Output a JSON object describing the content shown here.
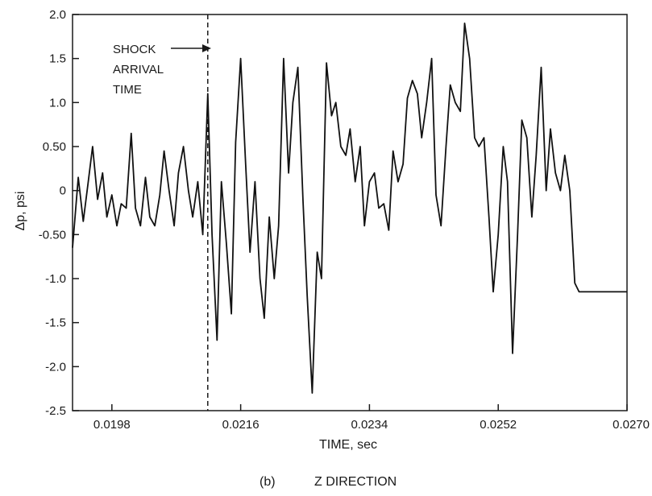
{
  "chart_data": {
    "type": "line",
    "caption_letter": "(b)",
    "caption_text": "Z DIRECTION",
    "xlabel": "TIME, sec",
    "ylabel": "Δp, psi",
    "xlim": [
      0.01925,
      0.027
    ],
    "ylim": [
      -2.5,
      2.0
    ],
    "x_ticks": [
      0.0198,
      0.0216,
      0.0234,
      0.0252,
      0.027
    ],
    "x_tick_labels": [
      "0.0198",
      "0.0216",
      "0.0234",
      "0.0252",
      "0.0270"
    ],
    "y_ticks": [
      2.0,
      1.5,
      1.0,
      0.5,
      0,
      -0.5,
      -1.0,
      -1.5,
      -2.0,
      -2.5
    ],
    "y_tick_labels": [
      "2.0",
      "1.5",
      "1.0",
      "0.50",
      "0",
      "-0.50",
      "-1.0",
      "-1.5",
      "-2.0",
      "-2.5"
    ],
    "grid": false,
    "annotation": {
      "lines": [
        "SHOCK",
        "ARRIVAL",
        "TIME"
      ],
      "shock_time": 0.02114
    },
    "series": [
      {
        "x": [
          0.01925,
          0.01933,
          0.0194,
          0.01947,
          0.01953,
          0.0196,
          0.01967,
          0.01973,
          0.0198,
          0.01987,
          0.01993,
          0.02,
          0.02007,
          0.02013,
          0.0202,
          0.02027,
          0.02033,
          0.0204,
          0.02047,
          0.02053,
          0.0206,
          0.02067,
          0.02073,
          0.0208,
          0.02087,
          0.02093,
          0.021,
          0.02107,
          0.02114,
          0.0212,
          0.02127,
          0.02133,
          0.0214,
          0.02147,
          0.02153,
          0.0216,
          0.02167,
          0.02173,
          0.0218,
          0.02187,
          0.02193,
          0.022,
          0.02207,
          0.02213,
          0.0222,
          0.02227,
          0.02233,
          0.0224,
          0.02247,
          0.02253,
          0.0226,
          0.02267,
          0.02273,
          0.0228,
          0.02287,
          0.02293,
          0.023,
          0.02307,
          0.02313,
          0.0232,
          0.02327,
          0.02333,
          0.0234,
          0.02347,
          0.02353,
          0.0236,
          0.02367,
          0.02373,
          0.0238,
          0.02387,
          0.02393,
          0.024,
          0.02407,
          0.02413,
          0.0242,
          0.02427,
          0.02433,
          0.0244,
          0.02447,
          0.02453,
          0.0246,
          0.02467,
          0.02473,
          0.0248,
          0.02487,
          0.02493,
          0.025,
          0.02507,
          0.02513,
          0.0252,
          0.02527,
          0.02533,
          0.0254,
          0.02547,
          0.02553,
          0.0256,
          0.02567,
          0.02573,
          0.0258,
          0.02587,
          0.02593,
          0.026,
          0.02607,
          0.02613,
          0.0262,
          0.02627,
          0.02633,
          0.0264,
          0.02647,
          0.02653,
          0.0266,
          0.02667,
          0.02673,
          0.0268,
          0.02687,
          0.02693,
          0.027
        ],
        "y": [
          -0.65,
          0.15,
          -0.35,
          0.1,
          0.5,
          -0.1,
          0.2,
          -0.3,
          -0.05,
          -0.4,
          -0.15,
          -0.2,
          0.65,
          -0.2,
          -0.4,
          0.15,
          -0.3,
          -0.4,
          -0.05,
          0.45,
          0.0,
          -0.4,
          0.2,
          0.5,
          0.0,
          -0.3,
          0.1,
          -0.5,
          1.1,
          -0.5,
          -1.7,
          0.1,
          -0.6,
          -1.4,
          0.55,
          1.5,
          0.3,
          -0.7,
          0.1,
          -1.0,
          -1.45,
          -0.3,
          -1.0,
          -0.4,
          1.5,
          0.2,
          1.0,
          1.4,
          -0.1,
          -1.2,
          -2.3,
          -0.7,
          -1.0,
          1.45,
          0.85,
          1.0,
          0.5,
          0.4,
          0.7,
          0.1,
          0.5,
          -0.4,
          0.1,
          0.2,
          -0.2,
          -0.15,
          -0.45,
          0.45,
          0.1,
          0.3,
          1.05,
          1.25,
          1.1,
          0.6,
          1.0,
          1.5,
          -0.05,
          -0.4,
          0.5,
          1.2,
          1.0,
          0.9,
          1.9,
          1.5,
          0.6,
          0.5,
          0.6,
          -0.3,
          -1.15,
          -0.5,
          0.5,
          0.1,
          -1.85,
          -0.5,
          0.8,
          0.6,
          -0.3,
          0.4,
          1.4,
          0.0,
          0.7,
          0.2,
          0.0,
          0.4,
          0.0,
          -1.05,
          -1.15,
          -1.15,
          -1.15,
          -1.15,
          -1.15,
          -1.15,
          -1.15,
          -1.15,
          -1.15,
          -1.15,
          -1.15
        ]
      }
    ]
  }
}
